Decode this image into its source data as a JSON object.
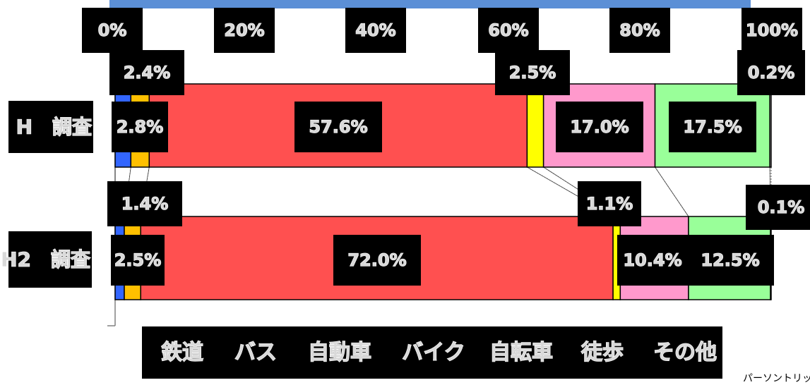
{
  "chart_data": {
    "type": "bar",
    "orientation": "horizontal",
    "stacked": "percent",
    "categories": [
      "H　調査",
      "H2　調査"
    ],
    "x_ticks": [
      "0%",
      "20%",
      "40%",
      "60%",
      "80%",
      "100%"
    ],
    "xlim": [
      0,
      100
    ],
    "series": [
      {
        "name": "鉄道",
        "color": "#3366ff",
        "values": [
          2.4,
          1.4
        ],
        "labels": [
          "2.4%",
          "1.4%"
        ]
      },
      {
        "name": "バス",
        "color": "#ffc000",
        "values": [
          2.8,
          2.5
        ],
        "labels": [
          "2.8%",
          "2.5%"
        ]
      },
      {
        "name": "自動車",
        "color": "#ff5050",
        "values": [
          57.6,
          72.0
        ],
        "labels": [
          "57.6%",
          "72.0%"
        ]
      },
      {
        "name": "バイク",
        "color": "#ffff00",
        "values": [
          2.5,
          1.1
        ],
        "labels": [
          "2.5%",
          "1.1%"
        ]
      },
      {
        "name": "自転車",
        "color": "#ff99cc",
        "values": [
          17.0,
          10.4
        ],
        "labels": [
          "17.0%",
          "10.4%"
        ]
      },
      {
        "name": "徒歩",
        "color": "#99ff99",
        "values": [
          17.5,
          12.5
        ],
        "labels": [
          "17.5%",
          "12.5%"
        ]
      },
      {
        "name": "その他",
        "color": "#ffffff",
        "values": [
          0.2,
          0.1
        ],
        "labels": [
          "0.2%",
          "0.1%"
        ]
      }
    ],
    "series_lines": true,
    "legend_position": "bottom",
    "grid": false
  },
  "footnote": "パーソントリップ調"
}
